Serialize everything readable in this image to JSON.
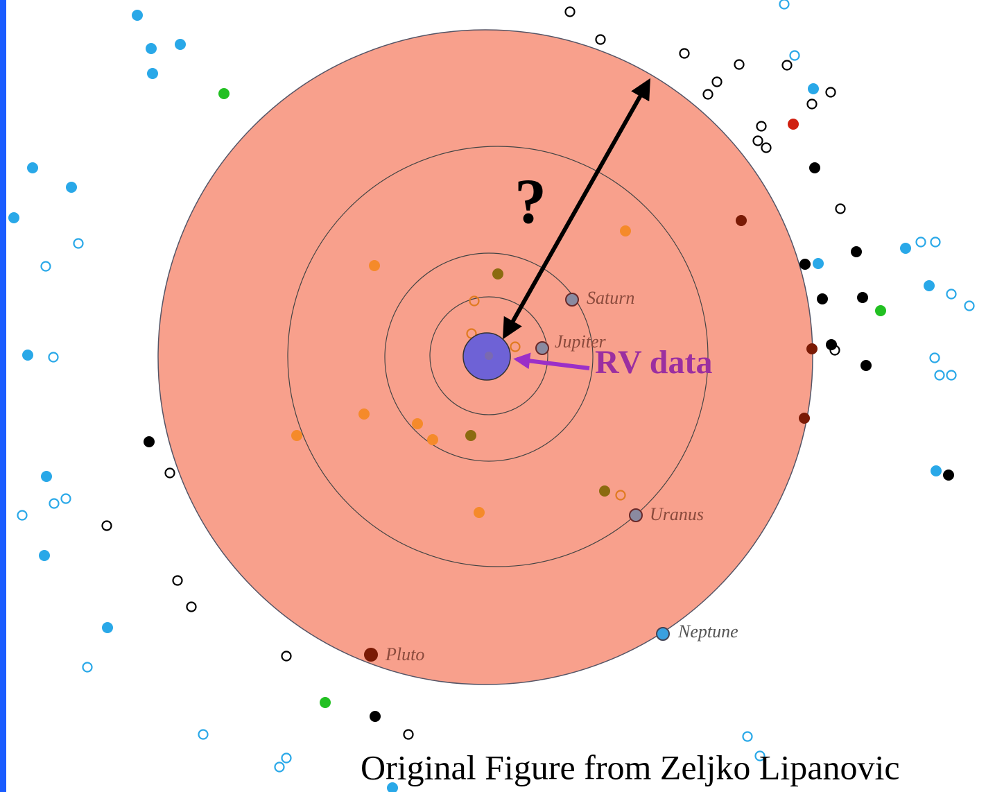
{
  "diagram": {
    "question": "?",
    "rv_label": "RV data",
    "planets": [
      {
        "label": "Saturn"
      },
      {
        "label": "Jupiter"
      },
      {
        "label": "Uranus"
      },
      {
        "label": "Neptune"
      },
      {
        "label": "Pluto"
      }
    ],
    "credit": "Original Figure from Zeljko Lipanovic"
  }
}
